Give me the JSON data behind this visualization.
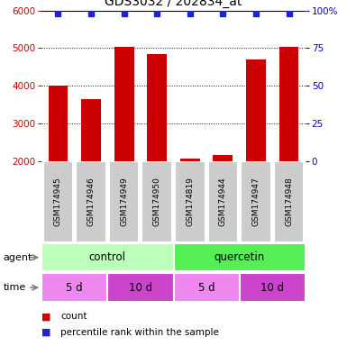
{
  "title": "GDS3032 / 202834_at",
  "samples": [
    "GSM174945",
    "GSM174946",
    "GSM174949",
    "GSM174950",
    "GSM174819",
    "GSM174944",
    "GSM174947",
    "GSM174948"
  ],
  "counts": [
    4000,
    3650,
    5020,
    4850,
    2050,
    2150,
    4700,
    5020
  ],
  "ylim": [
    2000,
    6000
  ],
  "yticks": [
    2000,
    3000,
    4000,
    5000,
    6000
  ],
  "y2ticks": [
    0,
    25,
    50,
    75,
    100
  ],
  "y2tick_labels": [
    "0",
    "25",
    "50",
    "75",
    "100%"
  ],
  "bar_color": "#cc0000",
  "dot_color": "#2222cc",
  "agent_labels": [
    "control",
    "quercetin"
  ],
  "agent_colors_light": [
    "#bbffbb",
    "#55ee55"
  ],
  "agent_colors_dark": [
    "#55ee55",
    "#33cc33"
  ],
  "time_labels": [
    "5 d",
    "10 d",
    "5 d",
    "10 d"
  ],
  "time_color_light": "#ee88ee",
  "time_color_dark": "#cc44cc",
  "sample_bg": "#cccccc",
  "ylabel_left_color": "#cc0000",
  "ylabel_right_color": "#0000cc",
  "grid_color": "#111111",
  "legend_count_color": "#cc0000",
  "legend_pct_color": "#2222cc",
  "title_fontsize": 10,
  "tick_fontsize": 7.5,
  "label_fontsize": 8,
  "bar_width": 0.6
}
